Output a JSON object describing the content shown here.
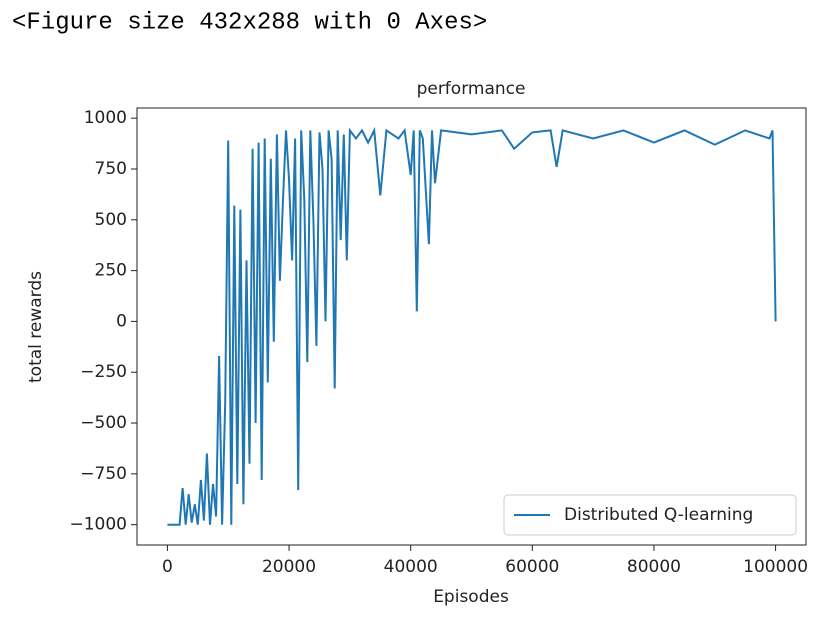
{
  "output_text": "<Figure size 432x288 with 0 Axes>",
  "chart_data": {
    "type": "line",
    "title": "performance",
    "x_label": "Episodes",
    "y_label": "total rewards",
    "xlim": [
      -5000,
      105000
    ],
    "ylim": [
      -1100,
      1050
    ],
    "xticks": [
      0,
      20000,
      40000,
      60000,
      80000,
      100000
    ],
    "yticks": [
      {
        "value": -1000,
        "label": "−1000"
      },
      {
        "value": -750,
        "label": "−750"
      },
      {
        "value": -500,
        "label": "−500"
      },
      {
        "value": -250,
        "label": "−250"
      },
      0,
      250,
      500,
      750,
      1000
    ],
    "legend": "lower right",
    "x": [
      0,
      1000,
      2000,
      2500,
      3000,
      3500,
      4000,
      4500,
      5000,
      5500,
      6000,
      6500,
      7000,
      7500,
      8000,
      8500,
      9000,
      9500,
      10000,
      10500,
      11000,
      11500,
      12000,
      12500,
      13000,
      13500,
      14000,
      14500,
      15000,
      15500,
      16000,
      16500,
      17000,
      17500,
      18000,
      18500,
      19000,
      19500,
      20000,
      20500,
      21000,
      21500,
      22000,
      22500,
      23000,
      23500,
      24000,
      24500,
      25000,
      25500,
      26000,
      26500,
      27000,
      27500,
      28000,
      28500,
      29000,
      29500,
      30000,
      31000,
      32000,
      33000,
      34000,
      35000,
      36000,
      37000,
      38000,
      39000,
      40000,
      40500,
      41000,
      41500,
      42000,
      43000,
      43500,
      44000,
      45000,
      50000,
      55000,
      57000,
      60000,
      63000,
      64000,
      65000,
      70000,
      75000,
      80000,
      85000,
      90000,
      95000,
      99000,
      99500,
      100000
    ],
    "series": [
      {
        "name": "Distributed Q-learning",
        "color": "#1f77b4",
        "values": [
          -1000,
          -1000,
          -1000,
          -820,
          -1000,
          -850,
          -990,
          -900,
          -1000,
          -780,
          -980,
          -650,
          -1000,
          -800,
          -960,
          -170,
          -1000,
          -400,
          890,
          -1000,
          570,
          -800,
          550,
          -900,
          300,
          -700,
          850,
          -500,
          880,
          -780,
          900,
          -300,
          800,
          -100,
          920,
          200,
          600,
          940,
          700,
          300,
          900,
          -830,
          940,
          600,
          -200,
          940,
          500,
          -120,
          930,
          750,
          0,
          940,
          800,
          -330,
          940,
          400,
          920,
          300,
          940,
          900,
          940,
          880,
          940,
          620,
          940,
          920,
          900,
          940,
          720,
          940,
          50,
          940,
          900,
          380,
          940,
          680,
          940,
          920,
          940,
          850,
          930,
          940,
          760,
          940,
          900,
          940,
          880,
          940,
          870,
          940,
          900,
          940,
          0
        ]
      }
    ]
  }
}
